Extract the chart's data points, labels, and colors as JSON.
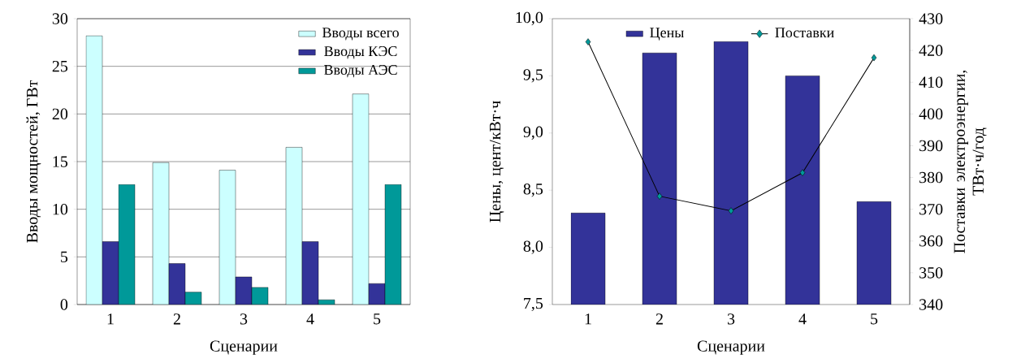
{
  "chart_data": [
    {
      "type": "bar",
      "categories": [
        "1",
        "2",
        "3",
        "4",
        "5"
      ],
      "xlabel": "Сценарии",
      "ylabel": "Вводы мощностей, ГВт",
      "ylim": [
        0,
        30
      ],
      "yticks": [
        0,
        5,
        10,
        15,
        20,
        25,
        30
      ],
      "grid": "y",
      "legend": "top right",
      "series": [
        {
          "name": "Вводы всего",
          "color": "#ccffff",
          "values": [
            28.2,
            14.9,
            14.1,
            16.5,
            22.1
          ]
        },
        {
          "name": "Вводы КЭС",
          "color": "#333399",
          "values": [
            6.6,
            4.3,
            2.9,
            6.6,
            2.2
          ]
        },
        {
          "name": "Вводы АЭС",
          "color": "#009999",
          "values": [
            12.6,
            1.3,
            1.8,
            0.5,
            12.6
          ]
        }
      ]
    },
    {
      "type": "bar",
      "categories": [
        "1",
        "2",
        "3",
        "4",
        "5"
      ],
      "xlabel": "Сценарии",
      "ylabel": "Цены, цент/кВт·ч",
      "y2label": "Поставки электроэнергии, ТВт·ч/год",
      "ylim": [
        7.5,
        10
      ],
      "yticks": [
        {
          "value": 7.5,
          "label": "7,5"
        },
        {
          "value": 8,
          "label": "8,0"
        },
        {
          "value": 8.5,
          "label": "8,5"
        },
        {
          "value": 9,
          "label": "9,0"
        },
        {
          "value": 9.5,
          "label": "9,5"
        },
        {
          "value": 10,
          "label": "10,0"
        }
      ],
      "y2lim": [
        340,
        430
      ],
      "y2ticks": [
        340,
        350,
        360,
        370,
        380,
        390,
        400,
        410,
        420,
        430
      ],
      "legend": "top",
      "series": [
        {
          "name": "Цены",
          "color": "#333399",
          "values": [
            8.3,
            9.7,
            9.8,
            9.5,
            8.4
          ]
        },
        {
          "name": "Поставки",
          "type": "line",
          "axis": "y2",
          "marker": "diamond",
          "color": "#009999",
          "values": [
            422.7,
            374.1,
            369.5,
            381.5,
            417.7
          ]
        }
      ]
    }
  ]
}
